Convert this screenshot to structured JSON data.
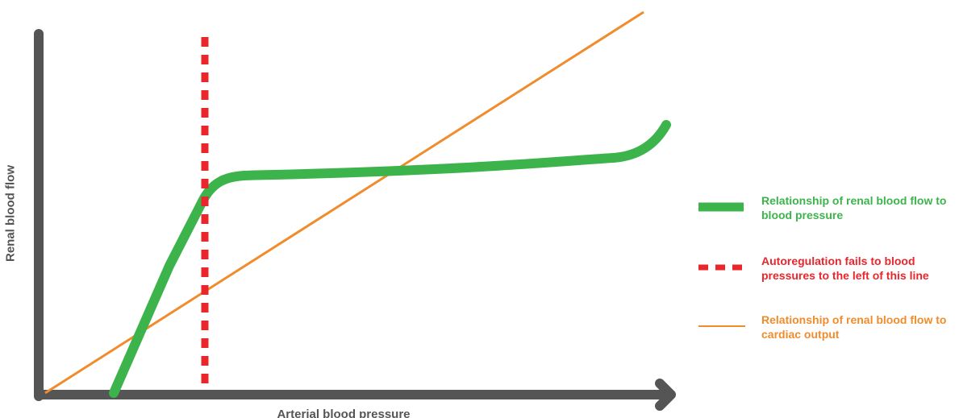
{
  "chart_data": {
    "type": "line",
    "title": "",
    "xlabel": "Arterial blood pressure",
    "ylabel": "Renal blood flow",
    "grid": false,
    "legend_position": "right",
    "series": [
      {
        "id": "bp",
        "name": "Relationship of renal blood flow to blood pressure",
        "color": "#3cb44b",
        "style": "thick-solid"
      },
      {
        "id": "limit",
        "name": "Autoregulation fails to blood pressures to the left of this line",
        "color": "#e8262c",
        "style": "dashed"
      },
      {
        "id": "co",
        "name": "Relationship of renal blood flow to cardiac output",
        "color": "#f08c2c",
        "style": "thin-solid"
      }
    ]
  },
  "colors": {
    "axis": "#555555"
  }
}
